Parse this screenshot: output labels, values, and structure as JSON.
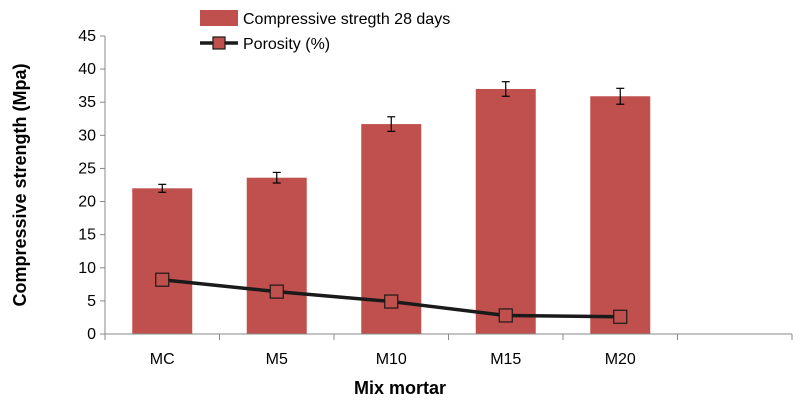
{
  "chart_data": {
    "type": "bar",
    "categories": [
      "MC",
      "M5",
      "M10",
      "M15",
      "M20"
    ],
    "series": [
      {
        "name": "Compressive stregth 28 days",
        "kind": "bar",
        "color": "#c0504d",
        "values": [
          22.0,
          23.6,
          31.7,
          37.0,
          35.9
        ],
        "errors": [
          0.6,
          0.8,
          1.1,
          1.1,
          1.2
        ]
      },
      {
        "name": "Porosity (%)",
        "kind": "line",
        "color": "#1a1a1a",
        "marker_fill": "#c0504d",
        "values": [
          8.2,
          6.4,
          4.9,
          2.8,
          2.6
        ]
      }
    ],
    "xlabel": "Mix mortar",
    "ylabel": "Compressive strength (Mpa)",
    "ylim": [
      0,
      45
    ],
    "yticks": [
      0,
      5,
      10,
      15,
      20,
      25,
      30,
      35,
      40,
      45
    ],
    "extra_empty_slots": 1,
    "grid": false,
    "legend_position": "top-center"
  }
}
